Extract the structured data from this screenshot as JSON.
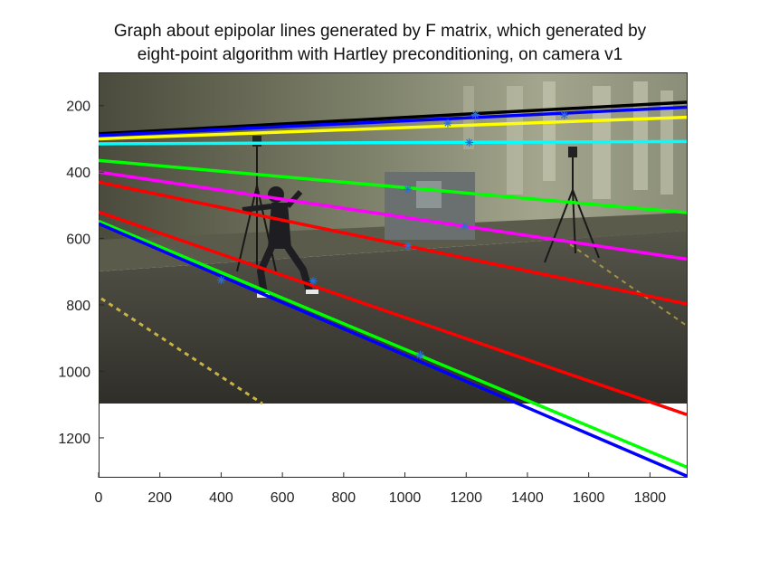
{
  "figure": {
    "title_lines": [
      "Graph about epipolar lines generated by F matrix, which generated by",
      "eight-point algorithm with Hartley preconditioning,  on camera v1"
    ]
  },
  "chart_data": {
    "type": "line",
    "title": "Graph about epipolar lines generated by F matrix, which generated by eight-point algorithm with Hartley preconditioning,  on camera v1",
    "xlabel": "",
    "ylabel": "",
    "xlim": [
      0,
      1920
    ],
    "ylim": [
      1320,
      100
    ],
    "y_reversed": true,
    "grid": false,
    "background_image_extent": {
      "x": [
        0,
        1920
      ],
      "y": [
        100,
        1080
      ]
    },
    "x_ticks": [
      0,
      200,
      400,
      600,
      800,
      1000,
      1200,
      1400,
      1600,
      1800
    ],
    "y_ticks": [
      200,
      400,
      600,
      800,
      1000,
      1200
    ],
    "lines": [
      {
        "color": "#000000",
        "x": [
          0,
          1920
        ],
        "y": [
          285,
          190
        ]
      },
      {
        "color": "#0000ff",
        "x": [
          0,
          1920
        ],
        "y": [
          290,
          205
        ]
      },
      {
        "color": "#ffff00",
        "x": [
          0,
          1920
        ],
        "y": [
          300,
          235
        ]
      },
      {
        "color": "#00ffff",
        "x": [
          0,
          1920
        ],
        "y": [
          315,
          308
        ]
      },
      {
        "color": "#00ff00",
        "x": [
          0,
          1920
        ],
        "y": [
          365,
          522
        ]
      },
      {
        "color": "#ff00ff",
        "x": [
          0,
          1920
        ],
        "y": [
          400,
          662
        ]
      },
      {
        "color": "#ff0000",
        "x": [
          0,
          1920
        ],
        "y": [
          430,
          797
        ]
      },
      {
        "color": "#ff0000",
        "x": [
          0,
          1920
        ],
        "y": [
          520,
          1130
        ]
      },
      {
        "color": "#00ff00",
        "x": [
          0,
          1920
        ],
        "y": [
          548,
          1288
        ]
      },
      {
        "color": "#0000ff",
        "x": [
          0,
          1920
        ],
        "y": [
          555,
          1315
        ]
      }
    ],
    "points": [
      {
        "x": 1140,
        "y": 253
      },
      {
        "x": 1230,
        "y": 227
      },
      {
        "x": 1520,
        "y": 229
      },
      {
        "x": 1210,
        "y": 311
      },
      {
        "x": 1010,
        "y": 452
      },
      {
        "x": 1195,
        "y": 563
      },
      {
        "x": 1010,
        "y": 622
      },
      {
        "x": 700,
        "y": 728
      },
      {
        "x": 400,
        "y": 725
      },
      {
        "x": 1050,
        "y": 950
      }
    ]
  },
  "palette": {
    "wall_light": "#8a8f7a",
    "wall_dark": "#3f4234",
    "floor": "#4d4c44",
    "floor_dark": "#35342e",
    "tripod": "#1a1a1a",
    "tape": "#c9b342",
    "door": "#6a7070",
    "point_color": "#2a6fd4"
  }
}
